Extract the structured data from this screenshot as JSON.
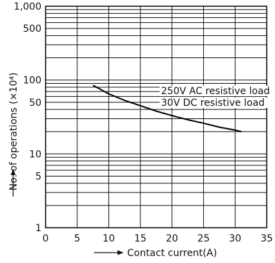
{
  "chart_data": {
    "type": "line",
    "xlabel": "Contact current(A)",
    "ylabel": "No. of operations (×10⁴)",
    "xlim": [
      0,
      35
    ],
    "ylim": [
      1,
      1000
    ],
    "y_scale": "log",
    "x_ticks": [
      0,
      5,
      10,
      15,
      20,
      25,
      30,
      35
    ],
    "x_tick_labels": [
      "0",
      "5",
      "10",
      "15",
      "20",
      "25",
      "30",
      "35"
    ],
    "y_ticks": [
      1,
      5,
      10,
      50,
      100,
      500,
      1000
    ],
    "y_tick_labels": [
      "1",
      "5",
      "10",
      "50",
      "100",
      "500",
      "1,000"
    ],
    "grid": true,
    "series": [
      {
        "x": [
          7.5,
          10,
          12.5,
          15,
          17.5,
          20,
          22.5,
          25,
          27.5,
          30,
          31
        ],
        "y": [
          85,
          65,
          53,
          45,
          38,
          33,
          29,
          26,
          23,
          21,
          20
        ]
      }
    ],
    "annotations": [
      "250V AC resistive load",
      "30V DC resistive load"
    ]
  }
}
